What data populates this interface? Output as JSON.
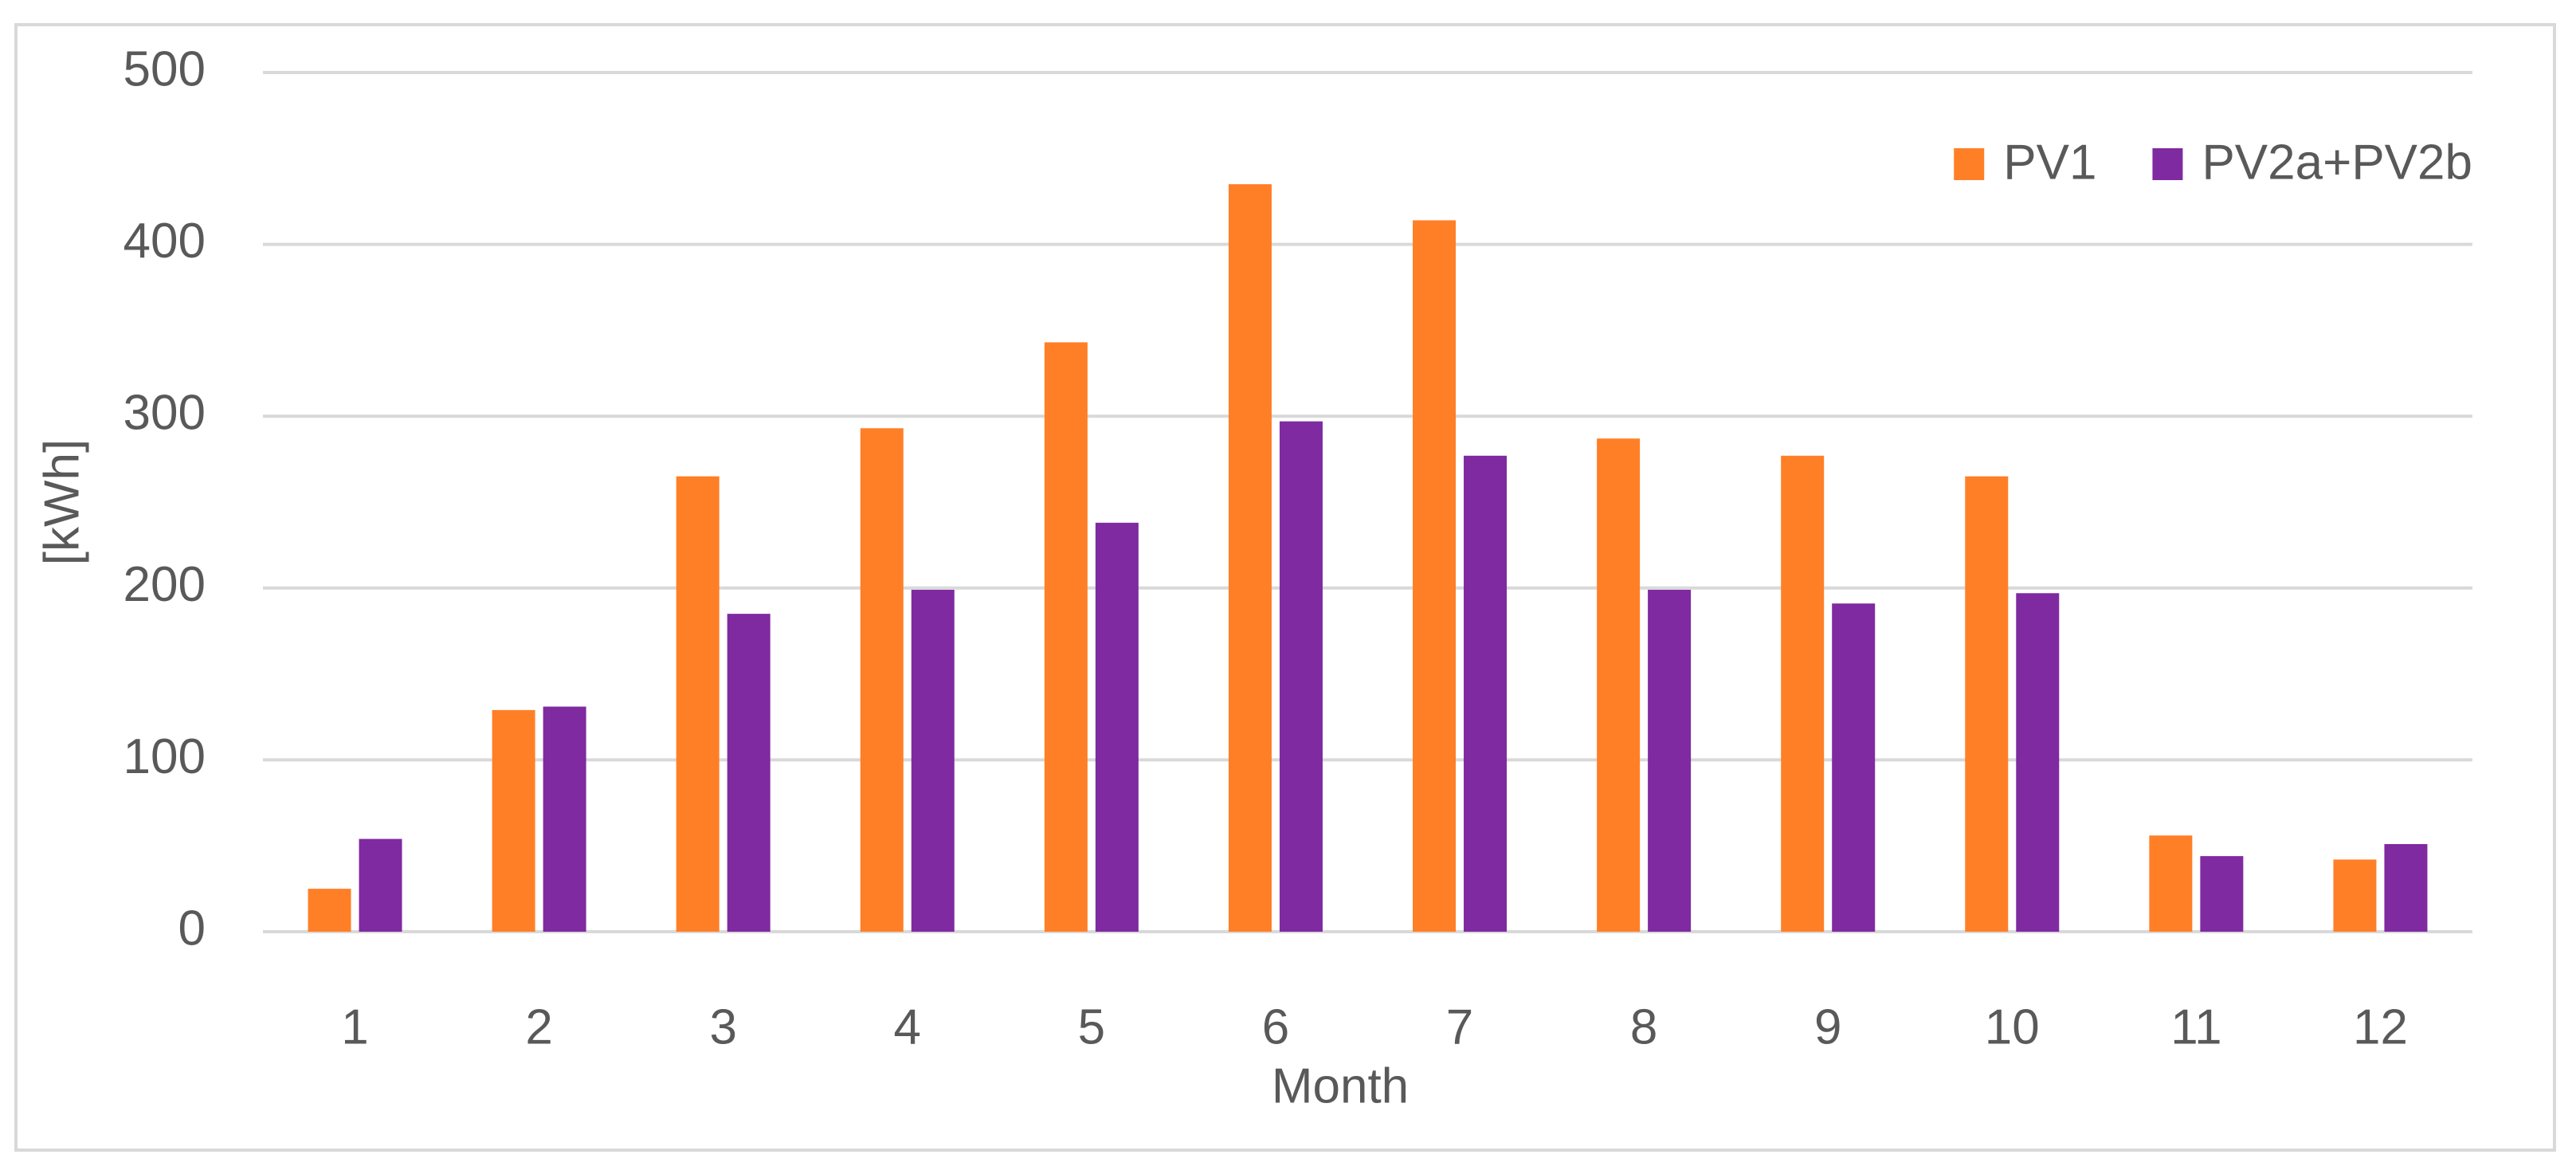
{
  "chart_data": {
    "type": "bar",
    "x_label": "Month",
    "y_label": "[kWh]",
    "categories": [
      "1",
      "2",
      "3",
      "4",
      "5",
      "6",
      "7",
      "8",
      "9",
      "10",
      "11",
      "12"
    ],
    "series": [
      {
        "name": "PV1",
        "color": "#ff7f27",
        "values": [
          25,
          129,
          265,
          293,
          343,
          435,
          414,
          287,
          277,
          265,
          56,
          42
        ]
      },
      {
        "name": "PV2a+PV2b",
        "color": "#7f2aa0",
        "values": [
          54,
          131,
          185,
          199,
          238,
          297,
          277,
          199,
          191,
          197,
          44,
          51
        ]
      }
    ],
    "ylim": [
      0,
      500
    ],
    "yticks": [
      0,
      100,
      200,
      300,
      400,
      500
    ],
    "grid": true,
    "legend": "top-right"
  }
}
